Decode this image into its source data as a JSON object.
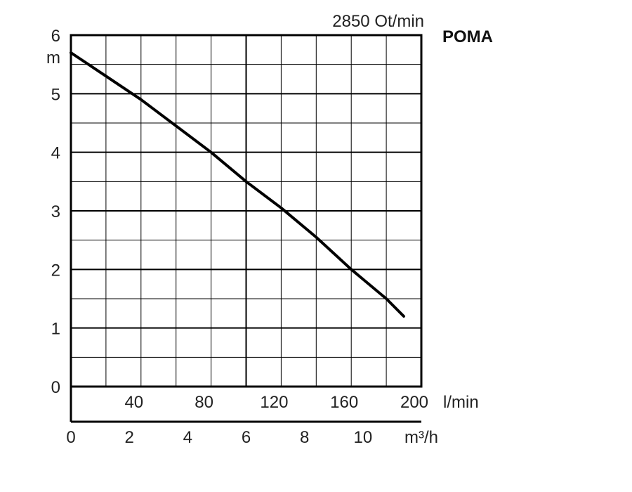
{
  "chart_data": {
    "type": "line",
    "speed_label": "2850 Ot/min",
    "brand": "POMA",
    "ylabel": "m",
    "ylim": [
      0,
      6
    ],
    "y_ticks": [
      "0",
      "1",
      "2",
      "3",
      "4",
      "5",
      "6"
    ],
    "x_lpm_ticks": [
      "40",
      "80",
      "120",
      "160",
      "200"
    ],
    "x_lpm_unit": "l/min",
    "x_m3h_ticks": [
      "0",
      "2",
      "4",
      "6",
      "8",
      "10"
    ],
    "x_m3h_unit": "m³/h",
    "xlim_lpm": [
      0,
      200
    ],
    "grid": true,
    "series": [
      {
        "x": [
          0,
          20,
          40,
          60,
          80,
          100,
          120,
          140,
          160,
          180,
          190
        ],
        "y": [
          5.7,
          5.3,
          4.9,
          4.45,
          4.0,
          3.5,
          3.05,
          2.55,
          2.0,
          1.5,
          1.2
        ],
        "color": "#000000"
      }
    ]
  }
}
